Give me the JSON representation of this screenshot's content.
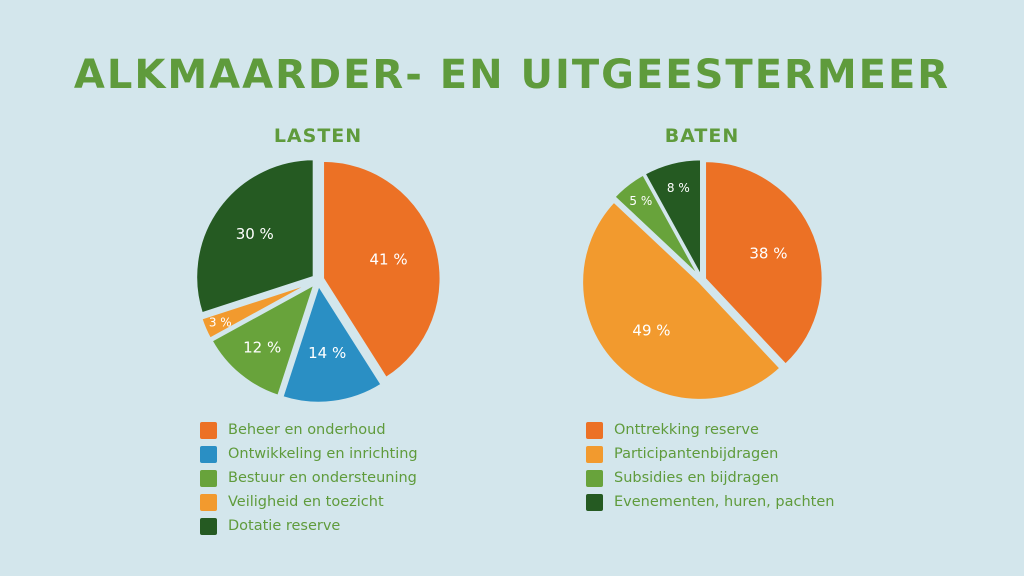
{
  "title": "ALKMAARDER- EN UITGEESTERMEER",
  "chart_data": [
    {
      "type": "pie",
      "title": "LASTEN",
      "categories": [
        "Beheer en onderhoud",
        "Ontwikkeling en inrichting",
        "Bestuur en ondersteuning",
        "Veiligheid en toezicht",
        "Dotatie reserve"
      ],
      "values": [
        41,
        14,
        12,
        3,
        30
      ],
      "labels": [
        "41 %",
        "14 %",
        "12 %",
        "3 %",
        "30 %"
      ],
      "colors": [
        "#ec7125",
        "#2a8fc4",
        "#68a33b",
        "#f29a2e",
        "#255a22"
      ],
      "legend_position": "bottom"
    },
    {
      "type": "pie",
      "title": "BATEN",
      "categories": [
        "Onttrekking reserve",
        "Participantenbijdragen",
        "Subsidies en bijdragen",
        "Evenementen, huren, pachten"
      ],
      "values": [
        38,
        49,
        5,
        8
      ],
      "labels": [
        "38 %",
        "49 %",
        "5 %",
        "8 %"
      ],
      "colors": [
        "#ec7125",
        "#f29a2e",
        "#68a33b",
        "#255a22"
      ],
      "legend_position": "bottom"
    }
  ]
}
